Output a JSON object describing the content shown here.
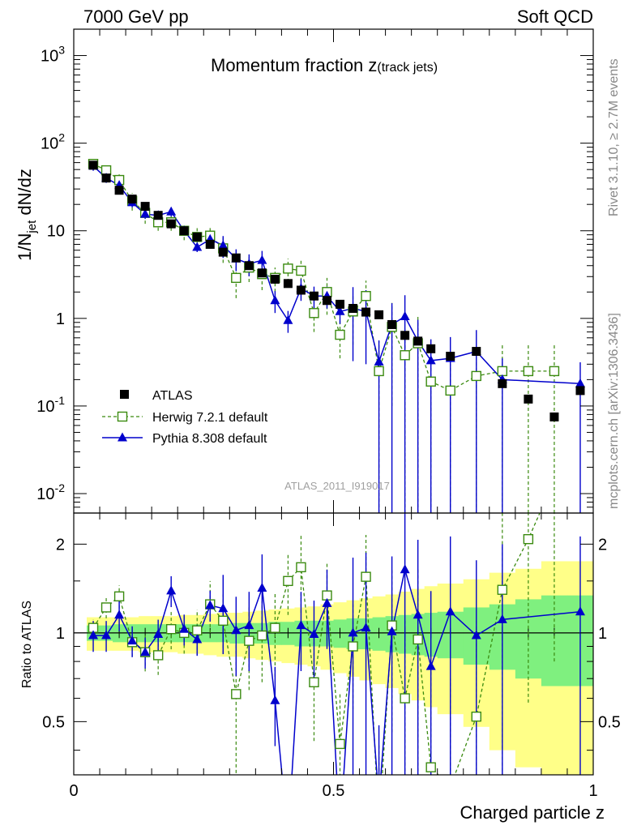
{
  "header": {
    "left": "7000 GeV pp",
    "right": "Soft QCD"
  },
  "side_labels": {
    "rivet": "Rivet 3.1.10, ≥ 2.7M events",
    "mcplots": "mcplots.cern.ch [arXiv:1306.3436]"
  },
  "plot_title": {
    "main": "Momentum fraction z",
    "sub": "(track jets)"
  },
  "watermark": "ATLAS_2011_I919017",
  "colors": {
    "atlas": "#000000",
    "herwig": "#3a8a0f",
    "pythia": "#0000cc",
    "band_inner": "#7ff07f",
    "band_outer": "#ffff88"
  },
  "chart_data": [
    {
      "type": "scatter",
      "ylabel": "1/N_jet dN/dz",
      "yscale": "log",
      "ylim": [
        0.006,
        2000
      ],
      "xlim": [
        0,
        1
      ],
      "y_ticks": [
        {
          "value": 0.01,
          "label": "10",
          "exp": "-2"
        },
        {
          "value": 0.1,
          "label": "10",
          "exp": "-1"
        },
        {
          "value": 1,
          "label": "1",
          "exp": ""
        },
        {
          "value": 10,
          "label": "10",
          "exp": ""
        },
        {
          "value": 100,
          "label": "10",
          "exp": "2"
        },
        {
          "value": 1000,
          "label": "10",
          "exp": "3"
        }
      ],
      "legend": {
        "placement": "lower-left",
        "entries": [
          "ATLAS",
          "Herwig 7.2.1 default",
          "Pythia 8.308 default"
        ]
      },
      "x": [
        0.0375,
        0.0625,
        0.0875,
        0.1125,
        0.1375,
        0.1625,
        0.1875,
        0.2125,
        0.2375,
        0.2625,
        0.2875,
        0.3125,
        0.3375,
        0.3625,
        0.3875,
        0.4125,
        0.4375,
        0.4625,
        0.4875,
        0.5125,
        0.5375,
        0.5625,
        0.5875,
        0.6125,
        0.6375,
        0.6625,
        0.6875,
        0.725,
        0.775,
        0.825,
        0.875,
        0.925,
        0.975
      ],
      "series": [
        {
          "name": "ATLAS",
          "values": [
            56,
            40,
            29,
            23,
            19,
            15,
            12,
            10,
            8.5,
            7,
            5.7,
            4.9,
            4.0,
            3.3,
            2.8,
            2.5,
            2.1,
            1.8,
            1.6,
            1.45,
            1.3,
            1.18,
            1.1,
            0.85,
            0.64,
            0.55,
            0.45,
            0.37,
            0.42,
            0.18,
            0.12,
            0.075,
            0.15
          ],
          "errors": [
            3,
            2,
            1.5,
            1.2,
            1,
            0.8,
            0.6,
            0.5,
            0.45,
            0.4,
            0.3,
            0.25,
            0.2,
            0.18,
            0.15,
            0.13,
            0.11,
            0.1,
            0.09,
            0.08,
            0.07,
            0.07,
            0.06,
            0.05,
            0.04,
            0.04,
            0.04,
            0.03,
            0.03,
            0.02,
            0.015,
            0.01,
            0.02
          ]
        },
        {
          "name": "Herwig 7.2.1 default",
          "values": [
            58,
            49,
            38,
            22,
            16,
            12.5,
            12.5,
            10,
            8.5,
            8.8,
            6.3,
            2.9,
            3.8,
            3.2,
            2.9,
            3.7,
            3.5,
            1.15,
            2.0,
            0.65,
            1.2,
            1.8,
            0.25,
            0.8,
            0.38,
            0.52,
            0.19,
            0.15,
            0.22,
            0.25,
            0.25,
            0.25,
            null
          ],
          "errors": [
            4,
            6,
            6,
            5,
            4,
            2.5,
            2.5,
            2.2,
            2.2,
            2.5,
            2,
            1.2,
            1.2,
            1.1,
            0.9,
            1.1,
            1.2,
            0.45,
            0.9,
            0.3,
            0.7,
            0.9,
            0.3,
            0.7,
            0.38,
            0.52,
            0.19,
            0.15,
            0.22,
            0.25,
            0.25,
            0.25,
            null
          ]
        },
        {
          "name": "Pythia 8.308 default",
          "values": [
            55,
            40,
            33,
            21,
            15.5,
            15,
            16.5,
            10,
            6.5,
            8,
            6.8,
            4.8,
            4.2,
            4.6,
            1.6,
            0.95,
            2.2,
            1.8,
            1.8,
            1.2,
            1.3,
            1.2,
            0.32,
            0.85,
            1.05,
            0.55,
            0.33,
            0.35,
            0.42,
            0.2,
            null,
            null,
            0.18
          ]
        }
      ]
    },
    {
      "type": "line",
      "xlabel": "Charged particle z",
      "ylabel": "Ratio to ATLAS",
      "yscale": "log",
      "ylim": [
        0.33,
        2.55
      ],
      "xlim": [
        0,
        1
      ],
      "x_ticks": [
        {
          "value": 0,
          "label": "0"
        },
        {
          "value": 0.5,
          "label": "0.5"
        },
        {
          "value": 1,
          "label": "1"
        }
      ],
      "y_ticks": [
        {
          "value": 0.5,
          "label": "0.5"
        },
        {
          "value": 1,
          "label": "1"
        },
        {
          "value": 2,
          "label": "2"
        }
      ],
      "band_bins": [
        0.025,
        0.05,
        0.075,
        0.1,
        0.125,
        0.15,
        0.175,
        0.2,
        0.225,
        0.25,
        0.275,
        0.3,
        0.325,
        0.35,
        0.375,
        0.4,
        0.425,
        0.45,
        0.475,
        0.5,
        0.525,
        0.55,
        0.575,
        0.6,
        0.625,
        0.65,
        0.675,
        0.7,
        0.75,
        0.8,
        0.85,
        0.9,
        0.95,
        1.0
      ],
      "band_inner": [
        0.06,
        0.06,
        0.07,
        0.07,
        0.07,
        0.07,
        0.07,
        0.07,
        0.07,
        0.07,
        0.07,
        0.08,
        0.08,
        0.08,
        0.09,
        0.09,
        0.1,
        0.1,
        0.1,
        0.11,
        0.12,
        0.12,
        0.13,
        0.14,
        0.15,
        0.16,
        0.17,
        0.18,
        0.22,
        0.25,
        0.3,
        0.34,
        0.34
      ],
      "band_outer": [
        0.13,
        0.13,
        0.13,
        0.13,
        0.14,
        0.14,
        0.14,
        0.15,
        0.15,
        0.16,
        0.17,
        0.17,
        0.18,
        0.19,
        0.2,
        0.21,
        0.22,
        0.23,
        0.25,
        0.27,
        0.29,
        0.31,
        0.33,
        0.35,
        0.38,
        0.41,
        0.44,
        0.47,
        0.52,
        0.6,
        0.65,
        0.75,
        0.75
      ],
      "series": [
        {
          "name": "Herwig 7.2.1 default",
          "values": [
            1.04,
            1.22,
            1.33,
            0.93,
            0.86,
            0.84,
            1.03,
            1.0,
            1.02,
            1.25,
            1.1,
            0.62,
            0.94,
            0.98,
            1.04,
            1.5,
            1.67,
            0.68,
            1.34,
            0.42,
            0.9,
            1.55,
            0.22,
            1.06,
            0.6,
            0.95,
            0.35,
            0.3,
            0.52,
            1.4,
            2.08,
            3.3,
            null
          ],
          "errors": [
            0.07,
            0.1,
            0.12,
            0.1,
            0.12,
            0.12,
            0.15,
            0.15,
            0.18,
            0.25,
            0.25,
            0.3,
            0.3,
            0.3,
            0.33,
            0.35,
            0.5,
            0.25,
            0.4,
            0.2,
            0.35,
            0.6,
            0.2,
            0.6,
            0.5,
            0.7,
            0.4,
            0.4,
            0.6,
            1.2,
            1.5,
            2.5,
            null
          ]
        },
        {
          "name": "Pythia 8.308 default",
          "values": [
            0.98,
            0.98,
            1.15,
            0.94,
            0.86,
            0.99,
            1.39,
            1.03,
            0.95,
            1.24,
            1.21,
            1.02,
            1.06,
            1.42,
            0.59,
            0.2,
            1.06,
            0.99,
            1.26,
            0.21,
            1.0,
            1.04,
            0.27,
            1.01,
            1.64,
            1.15,
            0.77,
            1.18,
            0.98,
            1.11,
            null,
            null,
            1.18
          ]
        }
      ]
    }
  ]
}
